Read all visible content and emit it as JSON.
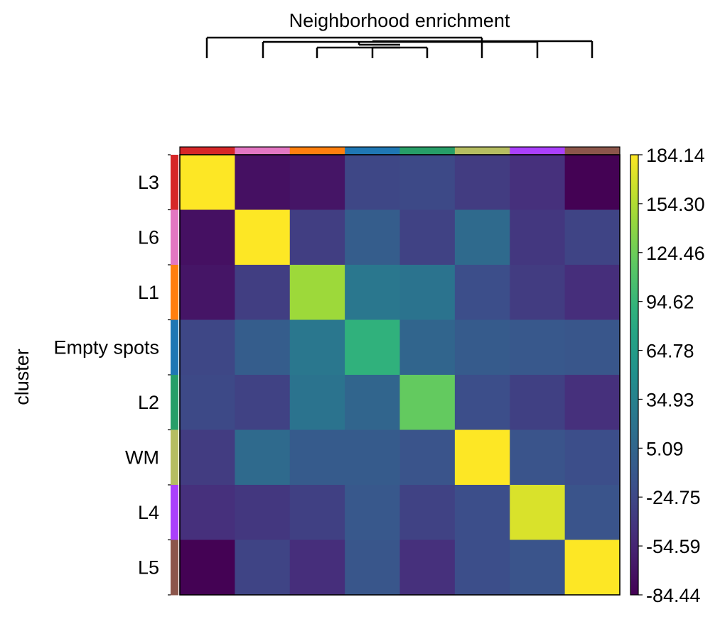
{
  "chart_data": {
    "type": "heatmap",
    "title": "Neighborhood enrichment",
    "ylabel": "cluster",
    "xlabel": "",
    "rows": [
      "L3",
      "L6",
      "L1",
      "Empty spots",
      "L2",
      "WM",
      "L4",
      "L5"
    ],
    "columns": [
      "L3",
      "L6",
      "L1",
      "Empty spots",
      "L2",
      "WM",
      "L4",
      "L5"
    ],
    "category_colors": [
      "#d62728",
      "#e377c2",
      "#ff7f0e",
      "#1f77b4",
      "#279e68",
      "#b5bd61",
      "#aa40fc",
      "#8c564b"
    ],
    "values": [
      [
        184,
        -72,
        -68,
        -26,
        -24,
        -36,
        -46,
        -84
      ],
      [
        -72,
        184,
        -34,
        -4,
        -30,
        10,
        -40,
        -29
      ],
      [
        -68,
        -34,
        146,
        24,
        20,
        -20,
        -36,
        -48
      ],
      [
        -26,
        -4,
        24,
        90,
        5,
        -6,
        -10,
        -12
      ],
      [
        -24,
        -30,
        20,
        5,
        120,
        -20,
        -32,
        -46
      ],
      [
        -36,
        10,
        -6,
        -6,
        -14,
        184,
        -14,
        -20
      ],
      [
        -46,
        -40,
        -32,
        -10,
        -30,
        -20,
        170,
        -14
      ],
      [
        -84,
        -29,
        -48,
        -12,
        -46,
        -20,
        -14,
        184
      ]
    ],
    "colorbar": {
      "min": -84.44,
      "max": 184.14,
      "tick_labels": [
        "184.14",
        "154.30",
        "124.46",
        "94.62",
        "64.78",
        "34.93",
        "5.09",
        "-24.75",
        "-54.59",
        "-84.44"
      ],
      "colormap": "viridis"
    },
    "dendrogram": true,
    "grid": false
  }
}
